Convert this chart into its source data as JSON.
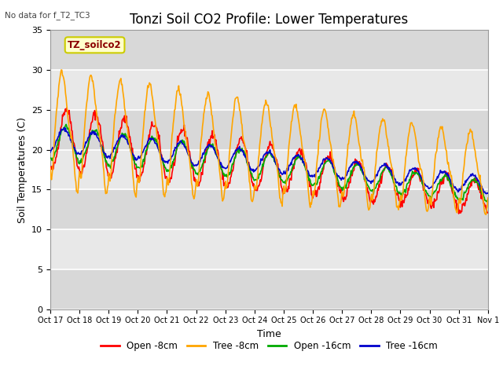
{
  "title": "Tonzi Soil CO2 Profile: Lower Temperatures",
  "subtitle": "No data for f_T2_TC3",
  "ylabel": "Soil Temperatures (C)",
  "xlabel": "Time",
  "legend_label": "TZ_soilco2",
  "legend_entries": [
    "Open -8cm",
    "Tree -8cm",
    "Open -16cm",
    "Tree -16cm"
  ],
  "legend_colors": [
    "#ff0000",
    "#ffa500",
    "#00aa00",
    "#0000cc"
  ],
  "ylim": [
    0,
    35
  ],
  "yticks": [
    0,
    5,
    10,
    15,
    20,
    25,
    30,
    35
  ],
  "xtick_labels": [
    "Oct 17",
    "Oct 18",
    "Oct 19",
    "Oct 20",
    "Oct 21",
    "Oct 22",
    "Oct 23",
    "Oct 24",
    "Oct 25",
    "Oct 26",
    "Oct 27",
    "Oct 28",
    "Oct 29",
    "Oct 30",
    "Oct 31",
    "Nov 1"
  ],
  "bg_color": "#d8d8d8",
  "band_colors": [
    "#d8d8d8",
    "#e8e8e8"
  ],
  "title_fontsize": 12,
  "axis_fontsize": 9,
  "tick_fontsize": 8
}
